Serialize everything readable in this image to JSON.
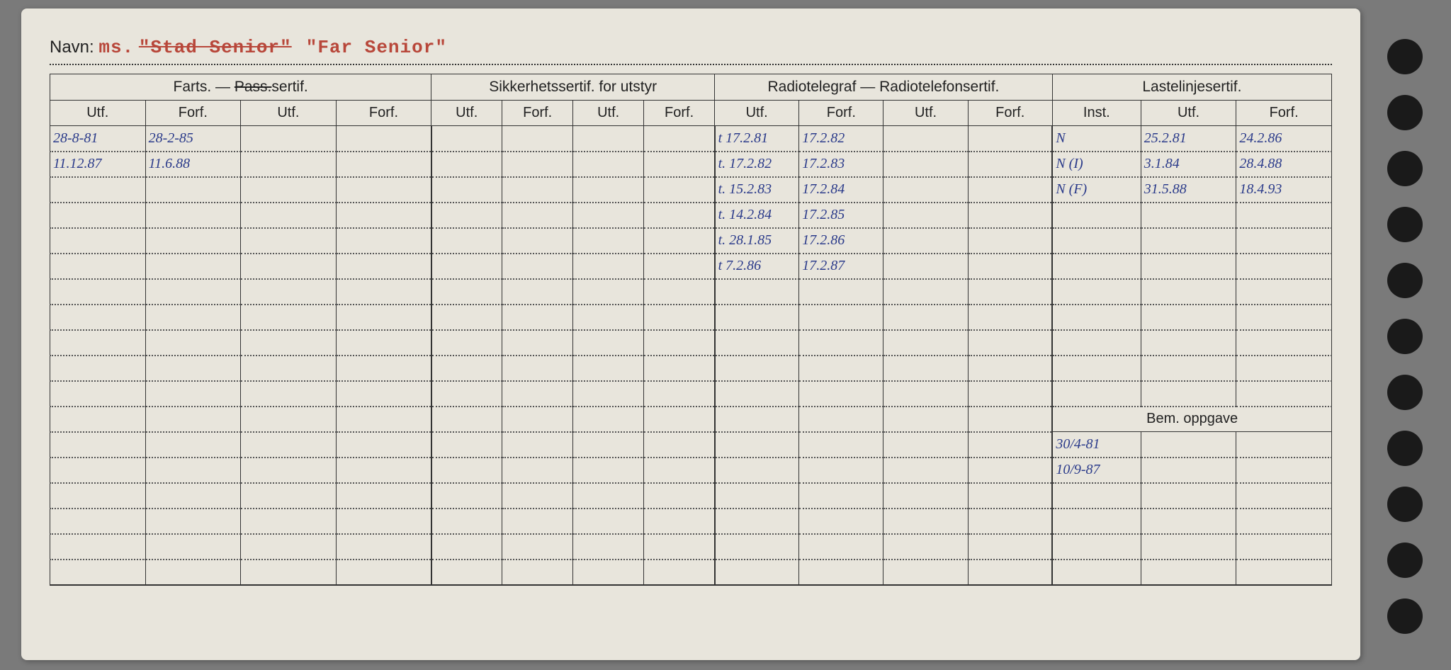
{
  "navn_label": "Navn:",
  "ship_prefix": "ms.",
  "ship_name_struck": "\"Stad Senior\"",
  "ship_name_current": "\"Far Senior\"",
  "group_headers": {
    "farts": "Farts. —",
    "farts_pass": "Pass.",
    "farts_suffix": "sertif.",
    "sikkerhet": "Sikkerhetssertif. for utstyr",
    "radio": "Radiotelegraf — Radiotelefonsertif.",
    "laste": "Lastelinjesertif."
  },
  "sub_headers": {
    "utf": "Utf.",
    "forf": "Forf.",
    "inst": "Inst."
  },
  "bem_oppgave_label": "Bem. oppgave",
  "farts_entries": [
    {
      "utf": "28-8-81",
      "forf": "28-2-85"
    },
    {
      "utf": "11.12.87",
      "forf": "11.6.88"
    }
  ],
  "radio_entries": [
    {
      "utf": "t 17.2.81",
      "forf": "17.2.82"
    },
    {
      "utf": "t. 17.2.82",
      "forf": "17.2.83"
    },
    {
      "utf": "t. 15.2.83",
      "forf": "17.2.84"
    },
    {
      "utf": "t. 14.2.84",
      "forf": "17.2.85"
    },
    {
      "utf": "t. 28.1.85",
      "forf": "17.2.86"
    },
    {
      "utf": "t 7.2.86",
      "forf": "17.2.87"
    }
  ],
  "laste_entries": [
    {
      "inst": "N",
      "utf": "25.2.81",
      "forf": "24.2.86"
    },
    {
      "inst": "N (I)",
      "utf": "3.1.84",
      "forf": "28.4.88"
    },
    {
      "inst": "N (F)",
      "utf": "31.5.88",
      "forf": "18.4.93"
    }
  ],
  "bem_entries": [
    "30/4-81",
    "10/9-87"
  ],
  "colors": {
    "paper": "#e8e5dc",
    "ink": "#222222",
    "typed_red": "#b8473a",
    "hand_blue": "#2a3a8a",
    "hole": "#1a1a1a",
    "bg": "#7a7a7a"
  },
  "layout": {
    "num_data_rows": 18,
    "num_holes": 11,
    "bem_split_row": 11
  }
}
